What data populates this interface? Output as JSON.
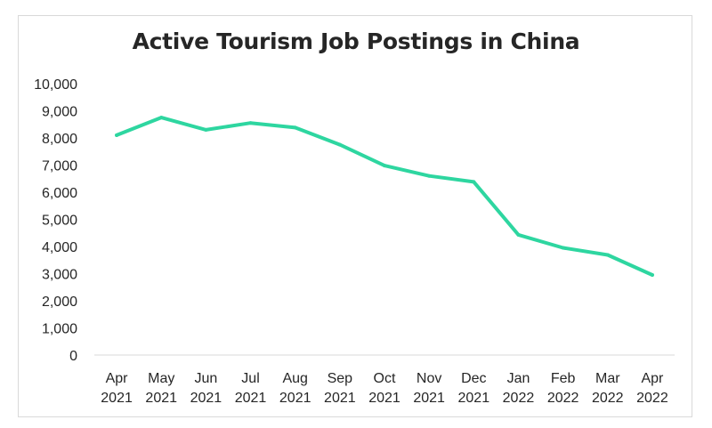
{
  "chart_data": {
    "type": "line",
    "title": "Active Tourism Job Postings in China",
    "xlabel": "",
    "ylabel": "",
    "categories": [
      [
        "Apr",
        "2021"
      ],
      [
        "May",
        "2021"
      ],
      [
        "Jun",
        "2021"
      ],
      [
        "Jul",
        "2021"
      ],
      [
        "Aug",
        "2021"
      ],
      [
        "Sep",
        "2021"
      ],
      [
        "Oct",
        "2021"
      ],
      [
        "Nov",
        "2021"
      ],
      [
        "Dec",
        "2021"
      ],
      [
        "Jan",
        "2022"
      ],
      [
        "Feb",
        "2022"
      ],
      [
        "Mar",
        "2022"
      ],
      [
        "Apr",
        "2022"
      ]
    ],
    "series": [
      {
        "values": [
          8100,
          8750,
          8300,
          8550,
          8380,
          7750,
          6980,
          6600,
          6380,
          4430,
          3950,
          3690,
          2950
        ],
        "color": "#2ed6a0"
      }
    ],
    "y_ticks": [
      "0",
      "1,000",
      "2,000",
      "3,000",
      "4,000",
      "5,000",
      "6,000",
      "7,000",
      "8,000",
      "9,000",
      "10,000"
    ],
    "ylim": [
      0,
      10000
    ],
    "grid": false,
    "legend": "none",
    "axis_color": "#d9d9d9"
  }
}
